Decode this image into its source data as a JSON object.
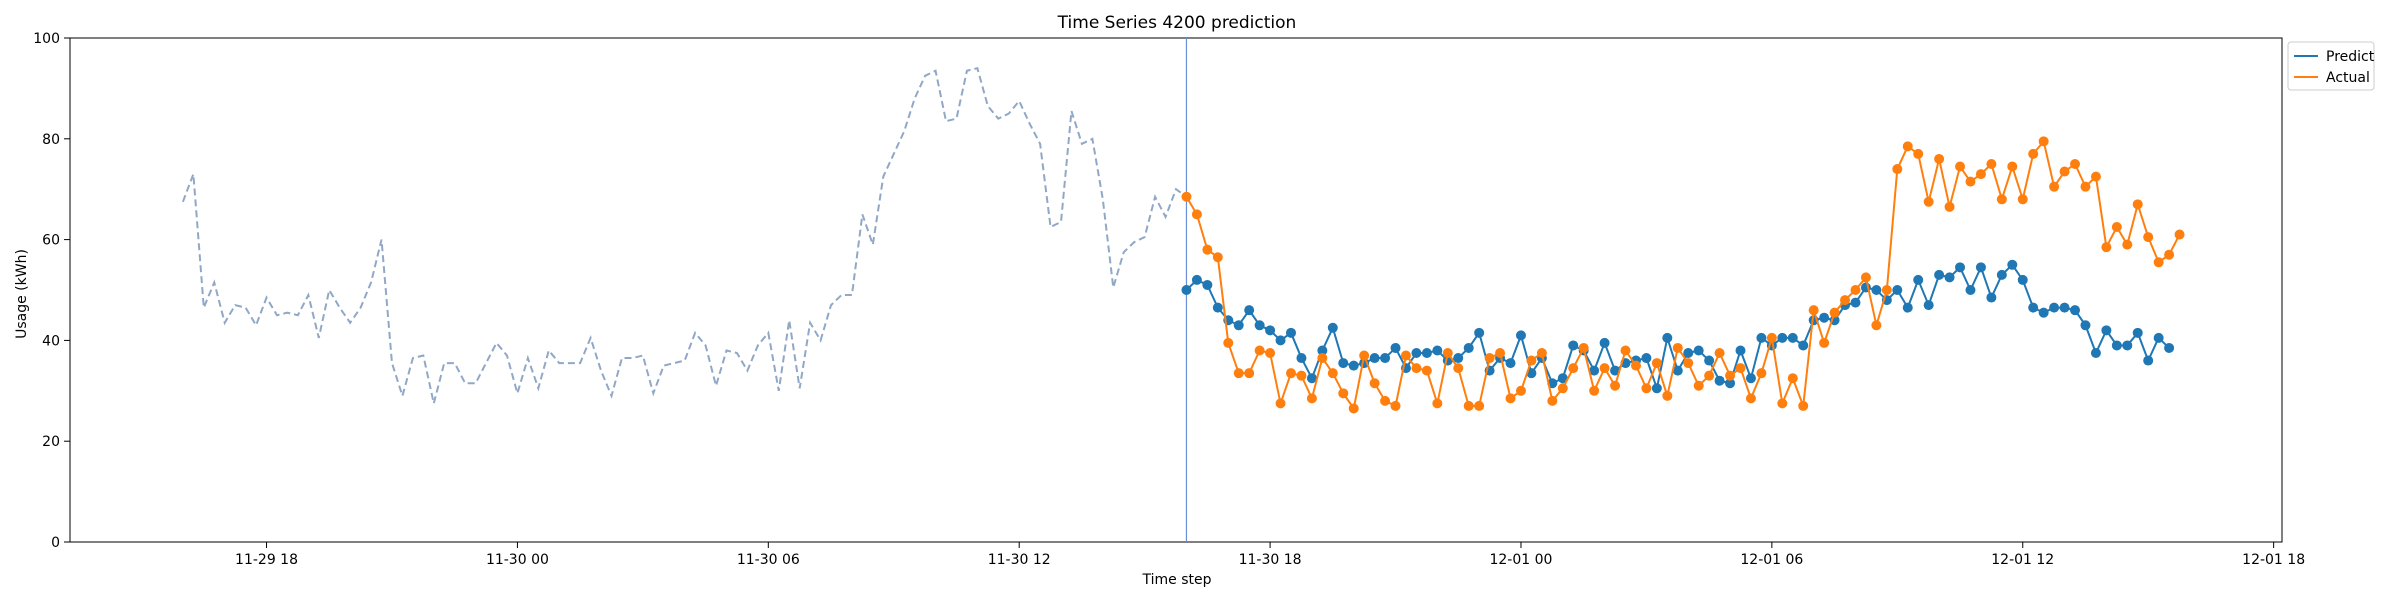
{
  "chart_data": {
    "type": "line",
    "title": "Time Series 4200 prediction",
    "xlabel": "Time step",
    "ylabel": "Usage (kWh)",
    "ylim": [
      0,
      100
    ],
    "yticks": [
      0,
      20,
      40,
      60,
      80,
      100
    ],
    "xlim": [
      "2024-11-29 13:18",
      "2024-12-01 18:12"
    ],
    "xticks": [
      {
        "t": "2024-11-29 18:00",
        "label": "11-29 18"
      },
      {
        "t": "2024-11-30 00:00",
        "label": "11-30 00"
      },
      {
        "t": "2024-11-30 06:00",
        "label": "11-30 06"
      },
      {
        "t": "2024-11-30 12:00",
        "label": "11-30 12"
      },
      {
        "t": "2024-11-30 18:00",
        "label": "11-30 18"
      },
      {
        "t": "2024-12-01 00:00",
        "label": "12-01 00"
      },
      {
        "t": "2024-12-01 06:00",
        "label": "12-01 06"
      },
      {
        "t": "2024-12-01 12:00",
        "label": "12-01 12"
      },
      {
        "t": "2024-12-01 18:00",
        "label": "12-01 18"
      }
    ],
    "grid": false,
    "legend": {
      "position": "top-right",
      "entries": [
        "Predict",
        "Actual"
      ]
    },
    "vline": {
      "t": "2024-11-30 16:00",
      "color": "#6b8fd6"
    },
    "history": {
      "color": "#90a8c6",
      "style": "dashed",
      "start": "2024-11-29 16:00",
      "step_minutes": 15,
      "values": [
        67.5,
        73.0,
        46.5,
        51.5,
        43.5,
        47.0,
        46.5,
        43.0,
        48.5,
        45.0,
        45.5,
        45.0,
        49.0,
        40.5,
        50.0,
        46.5,
        43.5,
        46.5,
        51.5,
        60.0,
        35.5,
        29.0,
        36.5,
        37.0,
        27.5,
        35.5,
        35.5,
        31.5,
        31.5,
        35.5,
        39.5,
        37.0,
        29.5,
        36.5,
        30.5,
        38.0,
        35.5,
        35.5,
        35.5,
        40.5,
        34.0,
        29.0,
        36.5,
        36.5,
        37.0,
        29.5,
        35.0,
        35.5,
        36.0,
        41.5,
        39.0,
        31.0,
        38.0,
        37.5,
        34.0,
        39.0,
        41.5,
        30.0,
        44.0,
        30.5,
        43.5,
        40.0,
        47.0,
        49.0,
        49.0,
        65.0,
        59.0,
        72.5,
        77.0,
        81.5,
        88.0,
        92.5,
        93.5,
        83.5,
        84.0,
        93.5,
        94.0,
        86.5,
        84.0,
        85.0,
        87.5,
        83.0,
        79.0,
        62.5,
        63.5,
        85.5,
        79.0,
        80.0,
        68.0,
        50.5,
        57.5,
        59.5,
        60.5,
        68.5,
        64.5,
        70.0,
        68.5
      ]
    },
    "series": [
      {
        "name": "Predict",
        "color": "#1f77b4",
        "start": "2024-11-30 16:00",
        "step_minutes": 15,
        "values": [
          50.0,
          52.0,
          51.0,
          46.5,
          44.0,
          43.0,
          46.0,
          43.0,
          42.0,
          40.0,
          41.5,
          36.5,
          32.5,
          38.0,
          42.5,
          35.5,
          35.0,
          35.5,
          36.5,
          36.5,
          38.5,
          34.5,
          37.5,
          37.5,
          38.0,
          36.0,
          36.5,
          38.5,
          41.5,
          34.0,
          36.5,
          35.5,
          41.0,
          33.5,
          36.5,
          31.5,
          32.5,
          39.0,
          38.0,
          34.0,
          39.5,
          34.0,
          35.5,
          36.0,
          36.5,
          30.5,
          40.5,
          34.0,
          37.5,
          38.0,
          36.0,
          32.0,
          31.5,
          38.0,
          32.5,
          40.5,
          39.0,
          40.5,
          40.5,
          39.0,
          44.0,
          44.5,
          44.0,
          47.0,
          47.5,
          50.5,
          50.0,
          48.0,
          50.0,
          46.5,
          52.0,
          47.0,
          53.0,
          52.5,
          54.5,
          50.0,
          54.5,
          48.5,
          53.0,
          55.0,
          52.0,
          46.5,
          45.5,
          46.5,
          46.5,
          46.0,
          43.0,
          37.5,
          42.0,
          39.0,
          39.0,
          41.5,
          36.0,
          40.5,
          38.5
        ]
      },
      {
        "name": "Actual",
        "color": "#ff7f0e",
        "start": "2024-11-30 16:00",
        "step_minutes": 15,
        "values": [
          68.5,
          65.0,
          58.0,
          56.5,
          39.5,
          33.5,
          33.5,
          38.0,
          37.5,
          27.5,
          33.5,
          33.0,
          28.5,
          36.5,
          33.5,
          29.5,
          26.5,
          37.0,
          31.5,
          28.0,
          27.0,
          37.0,
          34.5,
          34.0,
          27.5,
          37.5,
          34.5,
          27.0,
          27.0,
          36.5,
          37.5,
          28.5,
          30.0,
          36.0,
          37.5,
          28.0,
          30.5,
          34.5,
          38.5,
          30.0,
          34.5,
          31.0,
          38.0,
          35.0,
          30.5,
          35.5,
          29.0,
          38.5,
          35.5,
          31.0,
          33.0,
          37.5,
          33.0,
          34.5,
          28.5,
          33.5,
          40.5,
          27.5,
          32.5,
          27.0,
          46.0,
          39.5,
          45.5,
          48.0,
          50.0,
          52.5,
          43.0,
          50.0,
          74.0,
          78.5,
          77.0,
          67.5,
          76.0,
          66.5,
          74.5,
          71.5,
          73.0,
          75.0,
          68.0,
          74.5,
          68.0,
          77.0,
          79.5,
          70.5,
          73.5,
          75.0,
          70.5,
          72.5,
          58.5,
          62.5,
          59.0,
          67.0,
          60.5,
          55.5,
          57.0,
          61.0
        ]
      }
    ]
  }
}
